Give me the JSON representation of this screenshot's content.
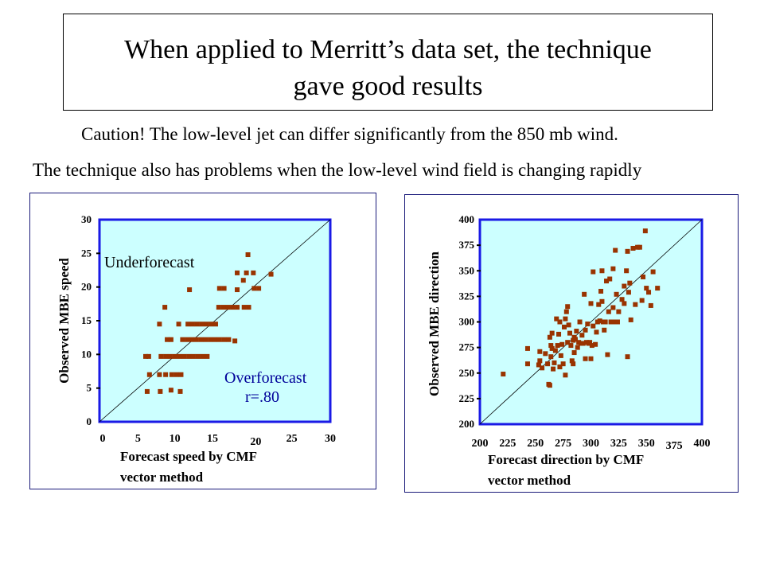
{
  "slide": {
    "title_line1": "When applied to Merritt’s data set, the technique",
    "title_line2": "gave good results",
    "caution": "Caution!  The low-level jet can differ significantly from the 850 mb wind.",
    "problems": "The technique also has problems when the low-level wind field is changing rapidly"
  },
  "colors": {
    "plot_bg": "#ccffff",
    "frame": "#1a1ae6",
    "point": "#993300",
    "text_blue": "#000099"
  },
  "chart_data": [
    {
      "type": "scatter",
      "id": "speed",
      "xlabel_line1": "Forecast speed by CMF",
      "xlabel_line2": "vector method",
      "ylabel": "Observed MBE speed",
      "xlim": [
        0,
        30
      ],
      "ylim": [
        0,
        30
      ],
      "xticks": [
        "0",
        "5",
        "10",
        "15",
        "20",
        "25",
        "30"
      ],
      "yticks": [
        "0",
        "5",
        "10",
        "15",
        "20",
        "25",
        "30"
      ],
      "reference_line": "y = x",
      "annotations": {
        "under": "Underforecast",
        "over": "Overforecast",
        "r": "r=.80"
      },
      "points": [
        [
          6.2,
          4.5
        ],
        [
          7.9,
          4.5
        ],
        [
          9.3,
          4.7
        ],
        [
          10.5,
          4.5
        ],
        [
          6.5,
          7.0
        ],
        [
          7.8,
          7.0
        ],
        [
          8.6,
          7.0
        ],
        [
          9.4,
          7.0
        ],
        [
          10.0,
          7.0
        ],
        [
          10.6,
          7.0
        ],
        [
          6.0,
          9.7
        ],
        [
          6.4,
          9.7
        ],
        [
          8.0,
          9.7
        ],
        [
          8.6,
          9.7
        ],
        [
          9.2,
          9.7
        ],
        [
          9.8,
          9.7
        ],
        [
          10.4,
          9.7
        ],
        [
          11.0,
          9.7
        ],
        [
          11.6,
          9.7
        ],
        [
          12.2,
          9.7
        ],
        [
          12.8,
          9.7
        ],
        [
          13.4,
          9.7
        ],
        [
          14.0,
          9.7
        ],
        [
          8.8,
          12.2
        ],
        [
          9.3,
          12.2
        ],
        [
          10.8,
          12.2
        ],
        [
          11.4,
          12.2
        ],
        [
          12.0,
          12.2
        ],
        [
          12.6,
          12.2
        ],
        [
          13.2,
          12.2
        ],
        [
          13.8,
          12.2
        ],
        [
          14.4,
          12.2
        ],
        [
          15.0,
          12.2
        ],
        [
          15.6,
          12.2
        ],
        [
          16.2,
          12.2
        ],
        [
          16.8,
          12.2
        ],
        [
          17.6,
          12.0
        ],
        [
          7.8,
          14.5
        ],
        [
          10.3,
          14.5
        ],
        [
          11.5,
          14.5
        ],
        [
          12.1,
          14.5
        ],
        [
          12.7,
          14.5
        ],
        [
          13.3,
          14.5
        ],
        [
          13.9,
          14.5
        ],
        [
          14.5,
          14.5
        ],
        [
          15.1,
          14.5
        ],
        [
          8.5,
          17.0
        ],
        [
          15.5,
          17.0
        ],
        [
          16.1,
          17.0
        ],
        [
          16.7,
          17.0
        ],
        [
          17.3,
          17.0
        ],
        [
          17.9,
          17.0
        ],
        [
          18.8,
          17.0
        ],
        [
          19.4,
          17.0
        ],
        [
          11.7,
          19.6
        ],
        [
          15.6,
          19.8
        ],
        [
          16.2,
          19.8
        ],
        [
          17.9,
          19.6
        ],
        [
          20.1,
          19.8
        ],
        [
          20.7,
          19.8
        ],
        [
          18.7,
          21.0
        ],
        [
          17.9,
          22.1
        ],
        [
          19.1,
          22.1
        ],
        [
          20.0,
          22.1
        ],
        [
          22.3,
          21.9
        ],
        [
          19.3,
          24.8
        ]
      ]
    },
    {
      "type": "scatter",
      "id": "direction",
      "xlabel_line1": "Forecast direction by CMF",
      "xlabel_line2": "vector method",
      "ylabel": "Observed MBE direction",
      "xlim": [
        200,
        400
      ],
      "ylim": [
        200,
        400
      ],
      "xticks": [
        "200",
        "225",
        "250",
        "275",
        "300",
        "325",
        "350",
        "375",
        "400"
      ],
      "yticks": [
        "200",
        "225",
        "250",
        "275",
        "300",
        "325",
        "350",
        "375",
        "400"
      ],
      "reference_line": "y = x",
      "points": [
        [
          221,
          249
        ],
        [
          243,
          259
        ],
        [
          243,
          274
        ],
        [
          253,
          258
        ],
        [
          254,
          262
        ],
        [
          254,
          271
        ],
        [
          256,
          255
        ],
        [
          259,
          269
        ],
        [
          261,
          259
        ],
        [
          262,
          239
        ],
        [
          263,
          238
        ],
        [
          263,
          285
        ],
        [
          264,
          277
        ],
        [
          264,
          266
        ],
        [
          265,
          274
        ],
        [
          265,
          289
        ],
        [
          266,
          254
        ],
        [
          267,
          260
        ],
        [
          268,
          272
        ],
        [
          269,
          303
        ],
        [
          270,
          277
        ],
        [
          271,
          288
        ],
        [
          272,
          256
        ],
        [
          272,
          300
        ],
        [
          273,
          267
        ],
        [
          274,
          278
        ],
        [
          275,
          259
        ],
        [
          276,
          295
        ],
        [
          277,
          248
        ],
        [
          277,
          303
        ],
        [
          278,
          310
        ],
        [
          279,
          315
        ],
        [
          279,
          280
        ],
        [
          280,
          297
        ],
        [
          281,
          289
        ],
        [
          282,
          277
        ],
        [
          283,
          262
        ],
        [
          284,
          259
        ],
        [
          284,
          282
        ],
        [
          285,
          270
        ],
        [
          285,
          285
        ],
        [
          286,
          283
        ],
        [
          287,
          291
        ],
        [
          288,
          275
        ],
        [
          289,
          280
        ],
        [
          290,
          300
        ],
        [
          291,
          279
        ],
        [
          292,
          287
        ],
        [
          293,
          279
        ],
        [
          294,
          327
        ],
        [
          295,
          292
        ],
        [
          295,
          264
        ],
        [
          296,
          280
        ],
        [
          297,
          298
        ],
        [
          298,
          279
        ],
        [
          299,
          280
        ],
        [
          300,
          318
        ],
        [
          300,
          264
        ],
        [
          301,
          277
        ],
        [
          302,
          296
        ],
        [
          302,
          349
        ],
        [
          304,
          278
        ],
        [
          305,
          290
        ],
        [
          306,
          300
        ],
        [
          307,
          317
        ],
        [
          308,
          301
        ],
        [
          309,
          330
        ],
        [
          310,
          320
        ],
        [
          310,
          350
        ],
        [
          311,
          300
        ],
        [
          312,
          292
        ],
        [
          313,
          300
        ],
        [
          314,
          340
        ],
        [
          315,
          268
        ],
        [
          316,
          310
        ],
        [
          317,
          342
        ],
        [
          318,
          300
        ],
        [
          319,
          300
        ],
        [
          320,
          314
        ],
        [
          320,
          352
        ],
        [
          321,
          300
        ],
        [
          322,
          370
        ],
        [
          323,
          327
        ],
        [
          324,
          300
        ],
        [
          325,
          310
        ],
        [
          328,
          322
        ],
        [
          330,
          318
        ],
        [
          330,
          335
        ],
        [
          332,
          350
        ],
        [
          333,
          369
        ],
        [
          333,
          266
        ],
        [
          334,
          329
        ],
        [
          335,
          338
        ],
        [
          336,
          302
        ],
        [
          338,
          372
        ],
        [
          340,
          317
        ],
        [
          342,
          373
        ],
        [
          344,
          373
        ],
        [
          346,
          321
        ],
        [
          347,
          344
        ],
        [
          349,
          389
        ],
        [
          350,
          333
        ],
        [
          352,
          329
        ],
        [
          354,
          316
        ],
        [
          356,
          349
        ],
        [
          360,
          333
        ]
      ]
    }
  ]
}
